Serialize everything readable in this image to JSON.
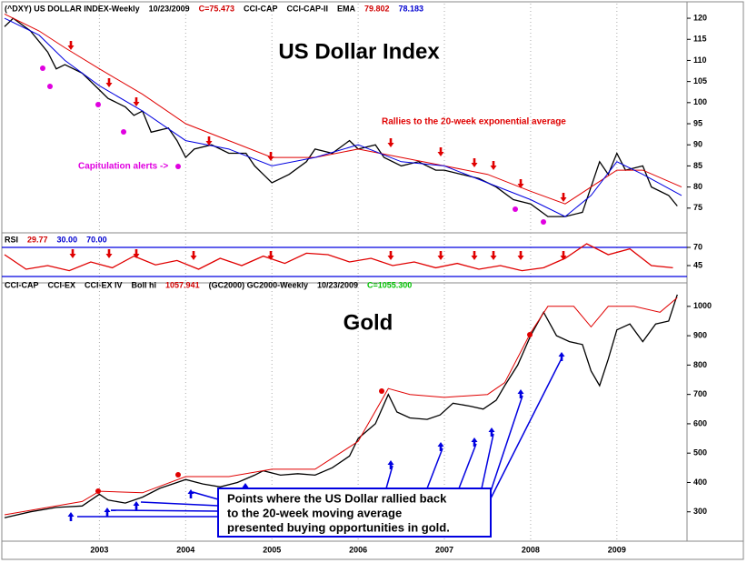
{
  "chart_data": [
    {
      "type": "line",
      "title": "US Dollar Index",
      "header": [
        {
          "text": "(^DXY) US DOLLAR INDEX-Weekly",
          "color": "#000000"
        },
        {
          "text": "10/23/2009",
          "color": "#000000"
        },
        {
          "text": "C=75.473",
          "color": "#d00000"
        },
        {
          "text": "CCI-CAP",
          "color": "#000000"
        },
        {
          "text": "CCI-CAP-II",
          "color": "#000000"
        },
        {
          "text": "EMA",
          "color": "#000000"
        },
        {
          "text": "79.802",
          "color": "#d00000"
        },
        {
          "text": "78.183",
          "color": "#0000d0"
        }
      ],
      "annotations": [
        {
          "text": "Rallies to the 20-week exponential average",
          "color": "#e00000"
        },
        {
          "text": "Capitulation alerts ->",
          "color": "#e000e0"
        }
      ],
      "ylim": [
        70,
        122.6
      ],
      "yticks": [
        75,
        80,
        85,
        90,
        95,
        100,
        105,
        110,
        115,
        120
      ],
      "series": [
        {
          "color": "#000000",
          "x": [
            2001.9,
            2002.0,
            2002.2,
            2002.4,
            2002.5,
            2002.6,
            2002.8,
            2003.0,
            2003.1,
            2003.3,
            2003.4,
            2003.5,
            2003.6,
            2003.8,
            2003.9,
            2004.0,
            2004.1,
            2004.3,
            2004.5,
            2004.7,
            2004.8,
            2004.9,
            2005.0,
            2005.2,
            2005.4,
            2005.5,
            2005.7,
            2005.9,
            2006.0,
            2006.2,
            2006.3,
            2006.5,
            2006.7,
            2006.9,
            2007.0,
            2007.2,
            2007.4,
            2007.6,
            2007.8,
            2008.0,
            2008.2,
            2008.4,
            2008.6,
            2008.7,
            2008.8,
            2008.9,
            2009.0,
            2009.1,
            2009.3,
            2009.4,
            2009.6,
            2009.7
          ],
          "values": [
            118,
            120,
            117,
            112,
            108,
            109,
            107,
            103,
            101,
            99,
            97,
            98,
            93,
            94,
            91,
            87,
            89,
            90,
            88,
            88,
            85,
            83,
            81,
            83,
            86,
            89,
            88,
            91,
            89,
            90,
            87,
            85,
            86,
            84,
            84,
            83,
            82,
            80,
            77,
            76,
            73,
            73,
            74,
            80,
            86,
            83,
            88,
            84,
            85,
            80,
            78,
            75.5
          ]
        },
        {
          "color": "#e00000",
          "x": [
            2001.9,
            2002.3,
            2002.6,
            2003.0,
            2003.5,
            2004.0,
            2004.5,
            2005.0,
            2005.5,
            2006.0,
            2006.5,
            2007.0,
            2007.5,
            2008.0,
            2008.4,
            2008.7,
            2009.0,
            2009.3,
            2009.75
          ],
          "values": [
            121,
            117,
            113,
            108,
            102,
            95,
            91,
            87,
            87,
            89,
            87,
            85,
            83,
            79,
            76,
            80,
            84,
            84,
            80
          ]
        },
        {
          "color": "#0000e0",
          "x": [
            2001.9,
            2002.3,
            2002.6,
            2003.0,
            2003.5,
            2004.0,
            2004.5,
            2005.0,
            2005.5,
            2006.0,
            2006.5,
            2007.0,
            2007.5,
            2008.0,
            2008.4,
            2008.7,
            2009.0,
            2009.3,
            2009.75
          ],
          "values": [
            120,
            116,
            110,
            104,
            98,
            91,
            89,
            85,
            87,
            90,
            86,
            85,
            81,
            77,
            73,
            78,
            86,
            83,
            78
          ]
        }
      ]
    },
    {
      "type": "line",
      "header": [
        {
          "text": "RSI",
          "color": "#000000"
        },
        {
          "text": "29.77",
          "color": "#d00000"
        },
        {
          "text": "30.00",
          "color": "#0000d0"
        },
        {
          "text": "70.00",
          "color": "#0000d0"
        }
      ],
      "ylim": [
        22.5,
        82.5
      ],
      "yticks": [
        45,
        70
      ],
      "levels": [
        30,
        70
      ],
      "level_color": "#0000e0",
      "series": [
        {
          "color": "#e00000",
          "x": [
            2001.9,
            2002.15,
            2002.4,
            2002.65,
            2002.9,
            2003.15,
            2003.4,
            2003.65,
            2003.9,
            2004.15,
            2004.4,
            2004.65,
            2004.9,
            2005.15,
            2005.4,
            2005.65,
            2005.9,
            2006.15,
            2006.4,
            2006.65,
            2006.9,
            2007.15,
            2007.4,
            2007.65,
            2007.9,
            2008.15,
            2008.4,
            2008.65,
            2008.9,
            2009.15,
            2009.4,
            2009.65
          ],
          "values": [
            60,
            40,
            45,
            38,
            50,
            42,
            58,
            46,
            52,
            40,
            55,
            45,
            58,
            48,
            62,
            60,
            50,
            55,
            45,
            50,
            42,
            48,
            40,
            45,
            38,
            42,
            55,
            75,
            60,
            68,
            45,
            42
          ]
        }
      ]
    },
    {
      "type": "line",
      "title": "Gold",
      "header": [
        {
          "text": "CCI-CAP",
          "color": "#000000"
        },
        {
          "text": "CCI-EX",
          "color": "#000000"
        },
        {
          "text": "CCI-EX IV",
          "color": "#000000"
        },
        {
          "text": "Boll hi",
          "color": "#000000"
        },
        {
          "text": "1057.941",
          "color": "#d00000"
        },
        {
          "text": "(GC2000) GC2000-Weekly",
          "color": "#000000"
        },
        {
          "text": "10/23/2009",
          "color": "#000000"
        },
        {
          "text": "C=1055.300",
          "color": "#00c000"
        }
      ],
      "annotation": [
        "Points where the US Dollar rallied back",
        "to the 20-week moving average",
        "presented buying opportunities in gold."
      ],
      "xlim": [
        2001.9,
        2009.75
      ],
      "xticks": [
        2003,
        2004,
        2005,
        2006,
        2007,
        2008,
        2009
      ],
      "ylim": [
        200,
        1077
      ],
      "yticks": [
        300,
        400,
        500,
        600,
        700,
        800,
        900,
        1000
      ],
      "series": [
        {
          "color": "#000000",
          "x": [
            2001.9,
            2002.2,
            2002.5,
            2002.8,
            2003.0,
            2003.1,
            2003.3,
            2003.5,
            2003.7,
            2003.9,
            2004.0,
            2004.2,
            2004.4,
            2004.6,
            2004.8,
            2004.9,
            2005.1,
            2005.3,
            2005.5,
            2005.7,
            2005.9,
            2006.0,
            2006.2,
            2006.35,
            2006.45,
            2006.6,
            2006.8,
            2006.95,
            2007.1,
            2007.3,
            2007.45,
            2007.6,
            2007.7,
            2007.85,
            2008.0,
            2008.15,
            2008.3,
            2008.45,
            2008.6,
            2008.7,
            2008.8,
            2008.9,
            2009.0,
            2009.15,
            2009.3,
            2009.45,
            2009.6,
            2009.7
          ],
          "values": [
            280,
            300,
            315,
            320,
            360,
            340,
            330,
            350,
            380,
            400,
            410,
            395,
            385,
            400,
            425,
            440,
            425,
            430,
            425,
            450,
            490,
            550,
            600,
            700,
            640,
            620,
            615,
            630,
            670,
            660,
            650,
            680,
            730,
            800,
            900,
            980,
            900,
            880,
            870,
            780,
            730,
            820,
            920,
            940,
            880,
            940,
            950,
            1040
          ]
        },
        {
          "color": "#e00000",
          "x": [
            2001.9,
            2002.8,
            2003.0,
            2003.5,
            2004.0,
            2004.5,
            2005.0,
            2005.5,
            2006.0,
            2006.35,
            2006.6,
            2007.0,
            2007.5,
            2007.7,
            2008.0,
            2008.2,
            2008.5,
            2008.7,
            2008.9,
            2009.2,
            2009.5,
            2009.7
          ],
          "values": [
            290,
            335,
            370,
            365,
            420,
            420,
            445,
            445,
            540,
            720,
            700,
            690,
            700,
            740,
            910,
            1000,
            1000,
            930,
            1000,
            1000,
            980,
            1030
          ]
        }
      ]
    }
  ]
}
